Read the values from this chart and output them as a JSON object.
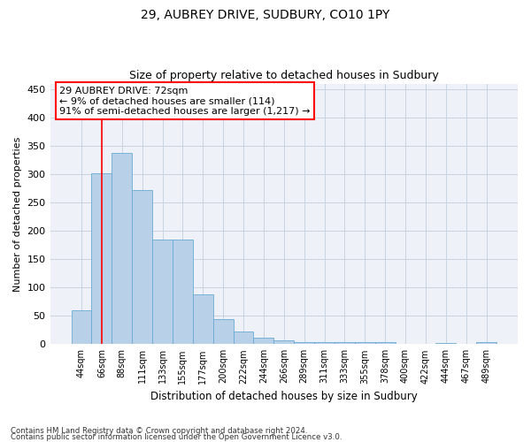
{
  "title1": "29, AUBREY DRIVE, SUDBURY, CO10 1PY",
  "title2": "Size of property relative to detached houses in Sudbury",
  "xlabel": "Distribution of detached houses by size in Sudbury",
  "ylabel": "Number of detached properties",
  "bins": [
    "44sqm",
    "66sqm",
    "88sqm",
    "111sqm",
    "133sqm",
    "155sqm",
    "177sqm",
    "200sqm",
    "222sqm",
    "244sqm",
    "266sqm",
    "289sqm",
    "311sqm",
    "333sqm",
    "355sqm",
    "378sqm",
    "400sqm",
    "422sqm",
    "444sqm",
    "467sqm",
    "489sqm"
  ],
  "values": [
    60,
    302,
    338,
    272,
    184,
    184,
    88,
    44,
    22,
    12,
    7,
    4,
    3,
    3,
    4,
    3,
    1,
    0,
    2,
    0,
    3
  ],
  "bar_color": "#b8d0e8",
  "bar_edge_color": "#6aaad4",
  "grid_color": "#c8d4e0",
  "property_line_x": 1,
  "annotation_text_line1": "29 AUBREY DRIVE: 72sqm",
  "annotation_text_line2": "← 9% of detached houses are smaller (114)",
  "annotation_text_line3": "91% of semi-detached houses are larger (1,217) →",
  "footnote1": "Contains HM Land Registry data © Crown copyright and database right 2024.",
  "footnote2": "Contains public sector information licensed under the Open Government Licence v3.0.",
  "ylim": [
    0,
    460
  ],
  "yticks": [
    0,
    50,
    100,
    150,
    200,
    250,
    300,
    350,
    400,
    450
  ],
  "background_color": "#eef2f8"
}
